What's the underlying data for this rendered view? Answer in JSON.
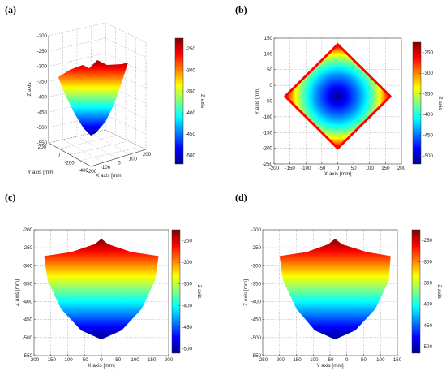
{
  "colormap": {
    "name": "jet",
    "stops": [
      "#00008f",
      "#0000ff",
      "#0080ff",
      "#00ffff",
      "#80ff80",
      "#ffff00",
      "#ff8000",
      "#ff0000",
      "#800000"
    ]
  },
  "chart_data": [
    {
      "panel": "(a)",
      "type": "surface3d",
      "xlabel": "X axis [mm]",
      "ylabel": "Y axis [mm]",
      "zlabel": "Z axis",
      "x_ticks": [
        "-200",
        "-100",
        "0",
        "100",
        "200"
      ],
      "y_ticks": [
        "-400",
        "-200",
        "0",
        "200"
      ],
      "z_ticks": [
        "-550",
        "-500",
        "-450",
        "-400",
        "-350",
        "-300",
        "-250",
        "-200"
      ],
      "zlim": [
        -550,
        -200
      ],
      "colorbar_label": "Z axis",
      "colorbar_ticks": [
        "-250",
        "-300",
        "-350",
        "-400",
        "-450",
        "-500"
      ],
      "colorbar_range": [
        -520,
        -225
      ],
      "grid": true
    },
    {
      "panel": "(b)",
      "type": "heatmap",
      "view": "top (X-Y)",
      "xlabel": "X axis [mm]",
      "ylabel": "Y axis [mm]",
      "x_ticks": [
        "-200",
        "-150",
        "-100",
        "-50",
        "0",
        "50",
        "100",
        "150",
        "200"
      ],
      "y_ticks": [
        "150",
        "100",
        "50",
        "0",
        "-50",
        "-100",
        "-150",
        "-200",
        "-250"
      ],
      "xlim": [
        -200,
        200
      ],
      "ylim": [
        -250,
        150
      ],
      "boundary": [
        [
          0,
          130
        ],
        [
          165,
          -35
        ],
        [
          0,
          -200
        ],
        [
          -165,
          -35
        ]
      ],
      "min_at": [
        0,
        -35
      ],
      "colorbar_label": "Z axis",
      "colorbar_ticks": [
        "-250",
        "-300",
        "-350",
        "-400",
        "-450",
        "-500"
      ],
      "colorbar_range": [
        -520,
        -225
      ],
      "grid": true
    },
    {
      "panel": "(c)",
      "type": "area",
      "view": "side (X-Z)",
      "xlabel": "X axis [mm]",
      "ylabel": "Z axis [mm]",
      "x_ticks": [
        "-200",
        "-150",
        "-100",
        "-50",
        "0",
        "50",
        "100",
        "150",
        "200"
      ],
      "y_ticks": [
        "-200",
        "-250",
        "-300",
        "-350",
        "-400",
        "-450",
        "-500",
        "-550"
      ],
      "xlim": [
        -200,
        200
      ],
      "ylim": [
        -550,
        -200
      ],
      "profile_top": [
        [
          -170,
          -273
        ],
        [
          -90,
          -262
        ],
        [
          -20,
          -240
        ],
        [
          0,
          -225
        ],
        [
          20,
          -240
        ],
        [
          90,
          -262
        ],
        [
          170,
          -273
        ]
      ],
      "profile_bottom": [
        [
          -170,
          -273
        ],
        [
          -160,
          -340
        ],
        [
          -120,
          -420
        ],
        [
          -60,
          -480
        ],
        [
          0,
          -505
        ],
        [
          60,
          -480
        ],
        [
          120,
          -420
        ],
        [
          160,
          -340
        ],
        [
          170,
          -273
        ]
      ],
      "colorbar_label": "Z axis",
      "colorbar_ticks": [
        "-250",
        "-300",
        "-350",
        "-400",
        "-450",
        "-500"
      ],
      "colorbar_range": [
        -510,
        -225
      ],
      "grid": true
    },
    {
      "panel": "(d)",
      "type": "area",
      "view": "side (Y-Z)",
      "xlabel": "Y axis [mm]",
      "ylabel": "Z axis [mm]",
      "x_ticks": [
        "-250",
        "-200",
        "-150",
        "-100",
        "-50",
        "0",
        "50",
        "100",
        "150"
      ],
      "y_ticks": [
        "-200",
        "-250",
        "-300",
        "-350",
        "-400",
        "-450",
        "-500",
        "-550"
      ],
      "xlim": [
        -250,
        150
      ],
      "ylim": [
        -550,
        -200
      ],
      "profile_top": [
        [
          -200,
          -273
        ],
        [
          -120,
          -262
        ],
        [
          -55,
          -240
        ],
        [
          -35,
          -225
        ],
        [
          -15,
          -240
        ],
        [
          60,
          -262
        ],
        [
          130,
          -273
        ]
      ],
      "profile_bottom": [
        [
          -200,
          -273
        ],
        [
          -190,
          -340
        ],
        [
          -150,
          -420
        ],
        [
          -95,
          -480
        ],
        [
          -35,
          -505
        ],
        [
          25,
          -480
        ],
        [
          85,
          -420
        ],
        [
          125,
          -340
        ],
        [
          130,
          -273
        ]
      ],
      "colorbar_label": "Z axis",
      "colorbar_ticks": [
        "-250",
        "-300",
        "-350",
        "-400",
        "-450",
        "-500"
      ],
      "colorbar_range": [
        -515,
        -225
      ],
      "grid": true
    }
  ]
}
